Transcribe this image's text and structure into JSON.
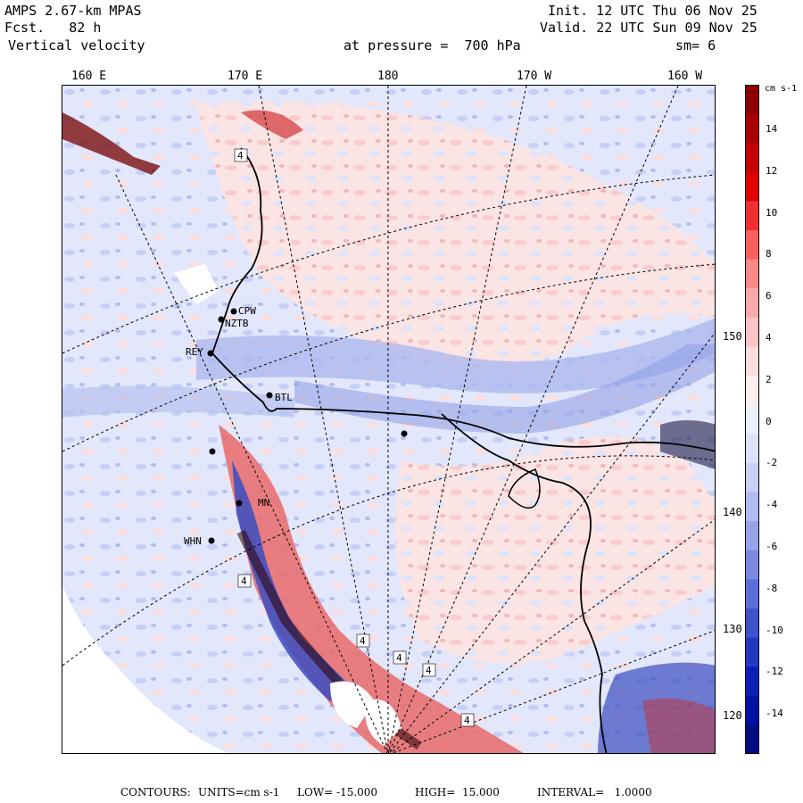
{
  "header": {
    "model": "AMPS 2.67-km MPAS",
    "forecast": "Fcst.   82 h",
    "variable": "Vertical velocity",
    "init": "Init. 12 UTC Thu 06 Nov 25",
    "valid": "Valid. 22 UTC Sun 09 Nov 25",
    "pressure": "at pressure =  700 hPa",
    "smoothing": "sm= 6"
  },
  "top_longitudes": [
    "160 E",
    "170 E",
    "180",
    "170 W",
    "160 W"
  ],
  "right_longitudes": [
    "150 W",
    "140 W",
    "130 W",
    "120 W"
  ],
  "colorbar": {
    "units": "cm s-1",
    "labels": [
      "14",
      "12",
      "10",
      "8",
      "6",
      "4",
      "2",
      "0",
      "-2",
      "-4",
      "-6",
      "-8",
      "-10",
      "-12",
      "-14"
    ],
    "colors": [
      "#8c0000",
      "#a80000",
      "#c40000",
      "#e00000",
      "#f03030",
      "#f86060",
      "#fa8a8a",
      "#fbaaaa",
      "#fcc4c4",
      "#fcdcdc",
      "#fceeee",
      "#eef0fc",
      "#dde2fa",
      "#c8d0f6",
      "#b0bcf0",
      "#96a4ea",
      "#7a8ae2",
      "#5c6ed8",
      "#3e52cc",
      "#2238c0",
      "#0a22b4",
      "#0012a0",
      "#000c80"
    ]
  },
  "stations": [
    "CPW",
    "NZTB",
    "REY",
    "BTL",
    "MN",
    "WHN"
  ],
  "contour_labels": [
    "4",
    "4",
    "4",
    "4",
    "4",
    "4"
  ],
  "footer": {
    "contours": "CONTOURS:",
    "units": "UNITS=cm s-1",
    "low": "LOW= -15.000",
    "high": "HIGH=  15.000",
    "interval": "INTERVAL=   1.0000"
  }
}
